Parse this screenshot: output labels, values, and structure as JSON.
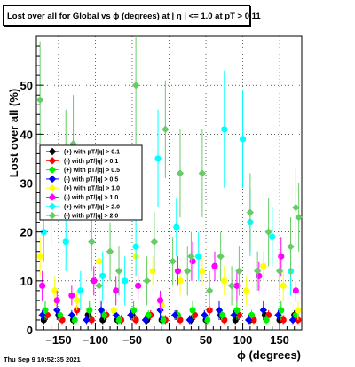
{
  "chart_data": {
    "type": "scatter",
    "title": "Lost over all for Global vs ϕ (degrees) at | η | <= 1.0 at pT > 0.11",
    "xlabel": "ϕ (degrees)",
    "ylabel": "Lost over all (%)",
    "xlim": [
      -180,
      180
    ],
    "ylim": [
      0,
      60
    ],
    "x_ticks": [
      -150,
      -100,
      -50,
      0,
      50,
      100,
      150
    ],
    "x_tick_labels": [
      "−150",
      "−100",
      "−50",
      "0",
      "50",
      "100",
      "150"
    ],
    "y_ticks": [
      0,
      10,
      20,
      30,
      40,
      50
    ],
    "y_tick_labels": [
      "0",
      "10",
      "20",
      "30",
      "40",
      "50"
    ],
    "grid": true,
    "legend_position": "left",
    "series": [
      {
        "name": "(+) with pT/|q| > 0.1",
        "color": "#000000",
        "marker": "circle",
        "x": [
          -170,
          -150,
          -130,
          -110,
          -90,
          -70,
          -50,
          -30,
          -10,
          10,
          30,
          50,
          70,
          90,
          110,
          130,
          150,
          170
        ],
        "y": [
          2,
          3,
          2,
          3,
          2,
          2,
          3,
          2,
          2,
          3,
          2,
          2,
          3,
          2,
          2,
          3,
          2,
          3
        ],
        "err": [
          1,
          1,
          1,
          1,
          1,
          1,
          1,
          1,
          1,
          1,
          1,
          1,
          1,
          1,
          1,
          1,
          1,
          1
        ]
      },
      {
        "name": "(-) with pT/|q| > 0.1",
        "color": "#ff0000",
        "marker": "circle",
        "x": [
          -165,
          -145,
          -125,
          -105,
          -85,
          -65,
          -45,
          -25,
          -5,
          15,
          35,
          55,
          75,
          95,
          115,
          135,
          155,
          175
        ],
        "y": [
          3,
          2,
          4,
          2,
          3,
          2,
          2,
          3,
          2,
          2,
          3,
          4,
          2,
          3,
          2,
          3,
          2,
          2
        ],
        "err": [
          1,
          1,
          1,
          1,
          1,
          1,
          1,
          1,
          1,
          1,
          1,
          1,
          1,
          1,
          1,
          1,
          1,
          1
        ]
      },
      {
        "name": "(+) with pT/|q| > 0.5",
        "color": "#00ee00",
        "marker": "circle",
        "x": [
          -168,
          -148,
          -128,
          -108,
          -88,
          -68,
          -48,
          -28,
          -8,
          12,
          32,
          52,
          72,
          92,
          112,
          132,
          152,
          172
        ],
        "y": [
          4,
          3,
          2,
          4,
          3,
          2,
          4,
          3,
          2,
          3,
          4,
          2,
          3,
          4,
          3,
          2,
          4,
          3
        ],
        "err": [
          2,
          1,
          1,
          2,
          1,
          1,
          2,
          1,
          1,
          1,
          2,
          1,
          1,
          2,
          1,
          1,
          2,
          1
        ]
      },
      {
        "name": "(-) with pT/|q| > 0.5",
        "color": "#0000ff",
        "marker": "diamond",
        "x": [
          -172,
          -152,
          -132,
          -112,
          -92,
          -72,
          -52,
          -32,
          -12,
          8,
          28,
          48,
          68,
          88,
          108,
          128,
          148,
          168
        ],
        "y": [
          3,
          4,
          3,
          2,
          4,
          3,
          3,
          2,
          4,
          3,
          2,
          3,
          4,
          3,
          2,
          4,
          3,
          2
        ],
        "err": [
          1,
          2,
          1,
          1,
          2,
          1,
          1,
          1,
          2,
          1,
          1,
          1,
          2,
          1,
          1,
          2,
          1,
          1
        ]
      },
      {
        "name": "(+) with pT/|q| > 1.0",
        "color": "#ffff00",
        "marker": "circle",
        "x": [
          -175,
          -155,
          -125,
          -95,
          -75,
          -45,
          -22,
          -10,
          15,
          45,
          75,
          105,
          128,
          155,
          175
        ],
        "y": [
          15,
          8,
          6,
          14,
          4,
          15,
          12,
          5,
          10,
          12,
          10,
          8,
          13,
          9,
          4
        ],
        "err": [
          4,
          3,
          2,
          4,
          2,
          4,
          3,
          2,
          3,
          3,
          3,
          3,
          3,
          3,
          2
        ]
      },
      {
        "name": "(-) with pT/|q| > 1.0",
        "color": "#ff00ff",
        "marker": "circle",
        "x": [
          -172,
          -152,
          -132,
          -102,
          -72,
          -42,
          -12,
          12,
          32,
          62,
          92,
          122,
          152,
          172
        ],
        "y": [
          9,
          6,
          7,
          10,
          8,
          9,
          6,
          12,
          14,
          13,
          9,
          11,
          15,
          8
        ],
        "err": [
          3,
          2,
          2,
          3,
          3,
          3,
          2,
          3,
          4,
          3,
          3,
          3,
          4,
          2
        ]
      },
      {
        "name": "(+) with pT/|q| > 2.0",
        "color": "#00ffff",
        "marker": "circle",
        "x": [
          -170,
          -140,
          -120,
          -90,
          -60,
          -45,
          -15,
          10,
          40,
          75,
          100,
          110,
          140,
          165
        ],
        "y": [
          20,
          18,
          8,
          11,
          10,
          17,
          35,
          21,
          15,
          41,
          39,
          22,
          19,
          12
        ],
        "err": [
          6,
          6,
          4,
          5,
          5,
          6,
          10,
          6,
          5,
          12,
          10,
          7,
          6,
          5
        ]
      },
      {
        "name": "(-) with pT/|q| > 2.0",
        "color": "#66cc66",
        "marker": "diamond",
        "x": [
          -175,
          -160,
          -140,
          -130,
          -105,
          -95,
          -80,
          -68,
          -45,
          -30,
          -20,
          -5,
          5,
          15,
          25,
          30,
          45,
          55,
          70,
          85,
          95,
          110,
          120,
          135,
          150,
          165,
          172,
          176
        ],
        "y": [
          47,
          25,
          35,
          38,
          18,
          9,
          16,
          12,
          50,
          10,
          18,
          41,
          14,
          32,
          12,
          15,
          32,
          8,
          15,
          9,
          12,
          24,
          12,
          20,
          12,
          17,
          25,
          23
        ],
        "err": [
          12,
          8,
          10,
          10,
          6,
          5,
          6,
          5,
          12,
          5,
          6,
          10,
          5,
          9,
          5,
          5,
          9,
          4,
          5,
          4,
          5,
          8,
          4,
          7,
          4,
          6,
          8,
          7
        ]
      }
    ]
  },
  "page": {
    "title": "Lost over all for Global vs ϕ (degrees) at | η | <= 1.0 at pT > 0.11",
    "timestamp": "Thu Sep  9 10:52:35 2021"
  }
}
